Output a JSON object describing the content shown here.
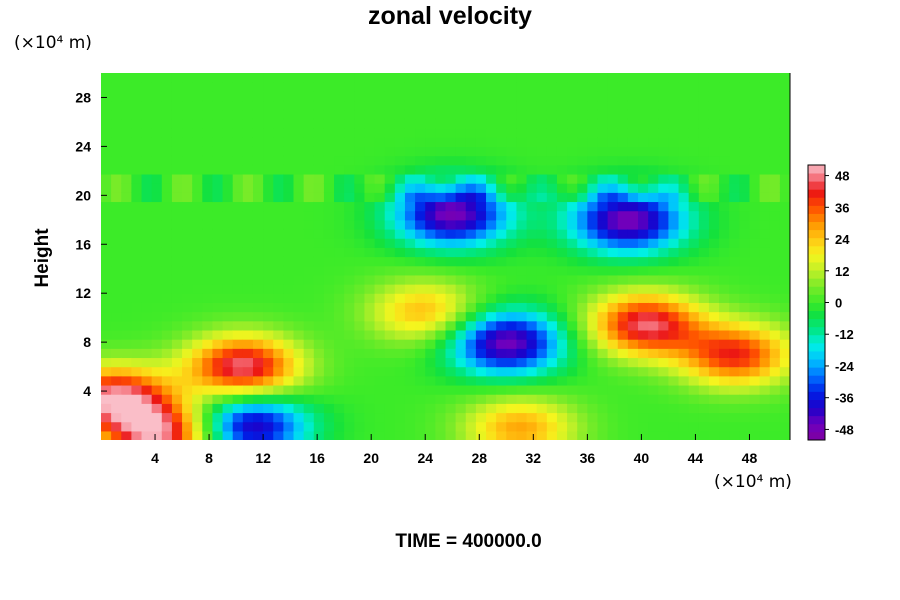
{
  "chart_data": {
    "type": "heatmap",
    "title": "zonal velocity",
    "ylabel": "Height",
    "y_unit": "(×10⁴ m)",
    "x_unit": "(×10⁴ m)",
    "xlim": [
      0,
      51
    ],
    "ylim": [
      0,
      30
    ],
    "x_ticks": [
      "4",
      "8",
      "12",
      "16",
      "20",
      "24",
      "28",
      "32",
      "36",
      "40",
      "44",
      "48"
    ],
    "y_ticks": [
      "4",
      "8",
      "12",
      "16",
      "20",
      "24",
      "28"
    ],
    "colorbar": {
      "range": [
        -52,
        52
      ],
      "ticks": [
        "48",
        "36",
        "24",
        "12",
        "0",
        "-12",
        "-24",
        "-36",
        "-48"
      ]
    },
    "field_description_regions": [
      {
        "x": 12,
        "y": 21,
        "value": 0
      },
      {
        "x": 26,
        "y": 18.5,
        "value": -48
      },
      {
        "x": 39,
        "y": 18,
        "value": -48
      },
      {
        "x": 30,
        "y": 8,
        "value": -48
      },
      {
        "x": 10.5,
        "y": 6,
        "value": 48
      },
      {
        "x": 47,
        "y": 7,
        "value": 40
      },
      {
        "x": 1,
        "y": 3.5,
        "value": 48
      },
      {
        "x": 4.5,
        "y": 0.5,
        "value": 48
      },
      {
        "x": 11,
        "y": 1.2,
        "value": -44
      },
      {
        "x": 24,
        "y": 10.5,
        "value": 26
      },
      {
        "x": 31,
        "y": 1,
        "value": 28
      },
      {
        "x": 40.3,
        "y": 9.5,
        "value": 46
      }
    ]
  },
  "footer": {
    "time_label": "TIME = ",
    "time_value": "400000.0"
  }
}
